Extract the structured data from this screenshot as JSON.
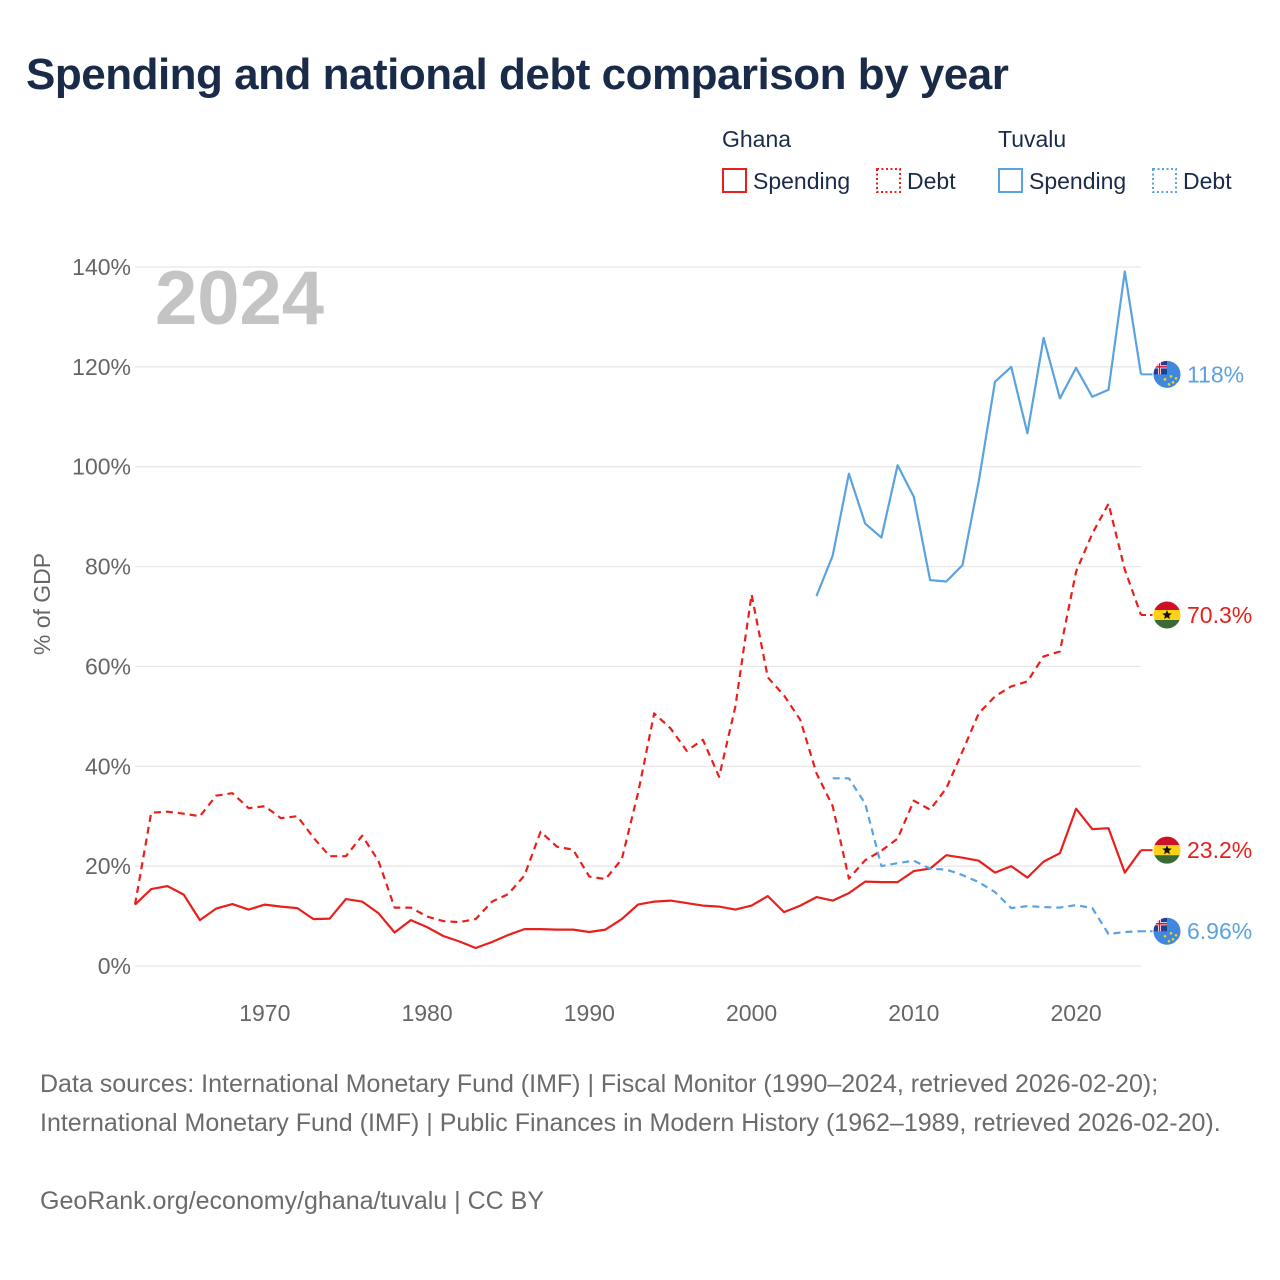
{
  "title": "Spending and national debt comparison by year",
  "chart_data": {
    "type": "line",
    "year_label": "2024",
    "ylabel": "% of GDP",
    "xlim": [
      1962,
      2024
    ],
    "ylim": [
      0,
      140
    ],
    "x_ticks": [
      1970,
      1980,
      1990,
      2000,
      2010,
      2020
    ],
    "y_ticks": [
      0,
      20,
      40,
      60,
      80,
      100,
      120,
      140
    ],
    "y_tick_suffix": "%",
    "grid": true,
    "legend_position": "top-right",
    "legend": {
      "groups": [
        {
          "name": "Ghana",
          "items": [
            {
              "label": "Spending",
              "style": "solid",
              "color": "#e8201c"
            },
            {
              "label": "Debt",
              "style": "dotted",
              "color": "#e8201c"
            }
          ]
        },
        {
          "name": "Tuvalu",
          "items": [
            {
              "label": "Spending",
              "style": "solid",
              "color": "#5aa2e0"
            },
            {
              "label": "Debt",
              "style": "dotted",
              "color": "#5aa2e0"
            }
          ]
        }
      ]
    },
    "series": [
      {
        "name": "Ghana Spending",
        "country": "Ghana",
        "color": "#e8201c",
        "dash": "solid",
        "flag": "ghana",
        "end_label": "23.2%",
        "x": [
          1962,
          1963,
          1964,
          1965,
          1966,
          1967,
          1968,
          1969,
          1970,
          1971,
          1972,
          1973,
          1974,
          1975,
          1976,
          1977,
          1978,
          1979,
          1980,
          1981,
          1982,
          1983,
          1984,
          1985,
          1986,
          1987,
          1988,
          1989,
          1990,
          1991,
          1992,
          1993,
          1994,
          1995,
          1996,
          1997,
          1998,
          1999,
          2000,
          2001,
          2002,
          2003,
          2004,
          2005,
          2006,
          2007,
          2008,
          2009,
          2010,
          2011,
          2012,
          2013,
          2014,
          2015,
          2016,
          2017,
          2018,
          2019,
          2020,
          2021,
          2022,
          2023,
          2024
        ],
        "values": [
          12.3,
          15.4,
          16.0,
          14.3,
          9.2,
          11.5,
          12.4,
          11.3,
          12.3,
          11.9,
          11.6,
          9.4,
          9.5,
          13.4,
          12.9,
          10.6,
          6.7,
          9.2,
          7.8,
          6.0,
          4.9,
          3.6,
          4.8,
          6.2,
          7.4,
          7.4,
          7.3,
          7.3,
          6.8,
          7.3,
          9.4,
          12.3,
          12.9,
          13.1,
          12.6,
          12.1,
          11.9,
          11.3,
          12.1,
          14.0,
          10.8,
          12.1,
          13.8,
          13.1,
          14.6,
          16.9,
          16.8,
          16.8,
          19.0,
          19.5,
          22.2,
          21.7,
          21.1,
          18.7,
          20.0,
          17.7,
          20.9,
          22.6,
          31.5,
          27.4,
          27.6,
          18.7,
          23.2
        ]
      },
      {
        "name": "Ghana Debt",
        "country": "Ghana",
        "color": "#e8201c",
        "dash": "dashed",
        "flag": "ghana",
        "end_label": "70.3%",
        "x": [
          1962,
          1963,
          1964,
          1965,
          1966,
          1967,
          1968,
          1969,
          1970,
          1971,
          1972,
          1973,
          1974,
          1975,
          1976,
          1977,
          1978,
          1979,
          1980,
          1981,
          1982,
          1983,
          1984,
          1985,
          1986,
          1987,
          1988,
          1989,
          1990,
          1991,
          1992,
          1993,
          1994,
          1995,
          1996,
          1997,
          1998,
          1999,
          2000,
          2001,
          2002,
          2003,
          2004,
          2005,
          2006,
          2007,
          2008,
          2009,
          2010,
          2011,
          2012,
          2013,
          2014,
          2015,
          2016,
          2017,
          2018,
          2019,
          2020,
          2021,
          2022,
          2023,
          2024
        ],
        "values": [
          12.3,
          30.7,
          30.9,
          30.5,
          30.0,
          34.1,
          34.6,
          31.6,
          32.0,
          29.6,
          30.0,
          25.7,
          22.0,
          22.0,
          26.1,
          21.1,
          11.7,
          11.7,
          9.9,
          9.0,
          8.8,
          9.4,
          12.9,
          14.4,
          18.1,
          26.9,
          23.9,
          23.3,
          17.9,
          17.4,
          21.4,
          34.6,
          50.6,
          47.6,
          43.1,
          45.3,
          37.9,
          52.0,
          74.4,
          57.8,
          54.2,
          49.3,
          38.6,
          32.0,
          17.5,
          21.2,
          23.1,
          25.5,
          33.1,
          31.3,
          35.6,
          43.0,
          50.6,
          54.0,
          56.0,
          57.0,
          62.0,
          63.0,
          79.0,
          86.6,
          92.6,
          79.4,
          70.3
        ]
      },
      {
        "name": "Tuvalu Spending",
        "country": "Tuvalu",
        "color": "#5aa2e0",
        "dash": "solid",
        "flag": "tuvalu",
        "end_label": "118%",
        "x": [
          2004,
          2005,
          2006,
          2007,
          2008,
          2009,
          2010,
          2011,
          2012,
          2013,
          2014,
          2015,
          2016,
          2017,
          2018,
          2019,
          2020,
          2021,
          2022,
          2023,
          2024
        ],
        "values": [
          74.1,
          82.2,
          98.6,
          88.6,
          85.8,
          100.3,
          94.0,
          77.3,
          77.0,
          80.3,
          97.0,
          117.0,
          120.0,
          106.7,
          125.8,
          113.7,
          119.8,
          114.0,
          115.4,
          139.1,
          118.5
        ]
      },
      {
        "name": "Tuvalu Debt",
        "country": "Tuvalu",
        "color": "#5aa2e0",
        "dash": "dashed",
        "flag": "tuvalu",
        "end_label": "6.96%",
        "x": [
          2005,
          2006,
          2007,
          2008,
          2009,
          2010,
          2011,
          2012,
          2013,
          2014,
          2015,
          2016,
          2017,
          2018,
          2019,
          2020,
          2021,
          2022,
          2023,
          2024
        ],
        "values": [
          37.6,
          37.6,
          32.5,
          20.0,
          20.6,
          21.1,
          19.5,
          19.3,
          18.2,
          16.8,
          14.8,
          11.6,
          12.0,
          11.8,
          11.7,
          12.2,
          11.6,
          6.4,
          6.8,
          6.96
        ]
      }
    ]
  },
  "sources": "Data sources: International Monetary Fund (IMF) | Fiscal Monitor (1990–2024, retrieved 2026-02-20); International Monetary Fund (IMF) | Public Finances in Modern History (1962–1989, retrieved 2026-02-20).",
  "credit": "GeoRank.org/economy/ghana/tuvalu | CC BY"
}
